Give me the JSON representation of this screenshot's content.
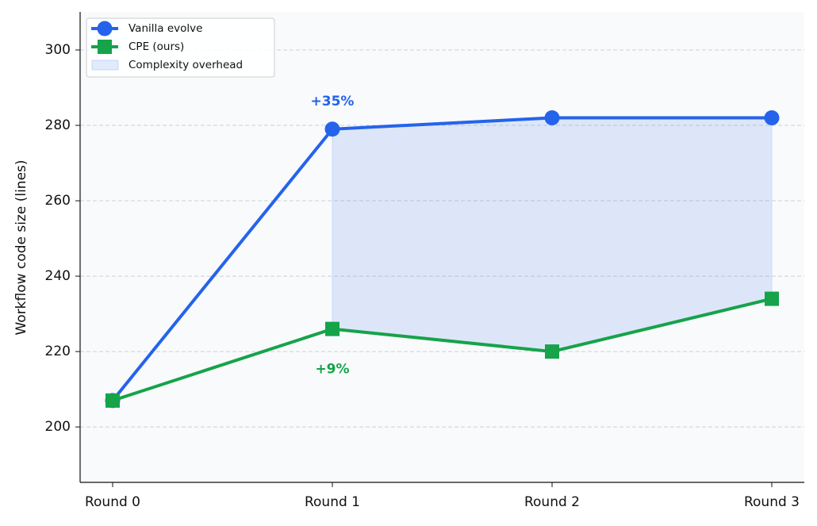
{
  "chart_data": {
    "type": "line",
    "ylabel": "Workflow code size (lines)",
    "categories": [
      "Round 0",
      "Round 1",
      "Round 2",
      "Round 3"
    ],
    "series": [
      {
        "name": "Vanilla evolve",
        "color": "#2563eb",
        "marker": "circle",
        "values": [
          207,
          279,
          282,
          282
        ]
      },
      {
        "name": "CPE (ours)",
        "color": "#16a34a",
        "marker": "square",
        "values": [
          207,
          226,
          220,
          234
        ]
      }
    ],
    "fill_between": {
      "name": "Complexity overhead",
      "color": "#2563eb",
      "opacity": 0.13,
      "from_index": 1
    },
    "annotations": [
      {
        "text": "+35%",
        "series": 0,
        "index": 1,
        "position": "above",
        "color": "#2563eb"
      },
      {
        "text": "+9%",
        "series": 1,
        "index": 1,
        "position": "below",
        "color": "#16a34a"
      }
    ],
    "ylim": [
      185.3,
      310.1
    ],
    "yticks": [
      200,
      220,
      240,
      260,
      280,
      300
    ],
    "grid": true,
    "legend": "upper left"
  }
}
